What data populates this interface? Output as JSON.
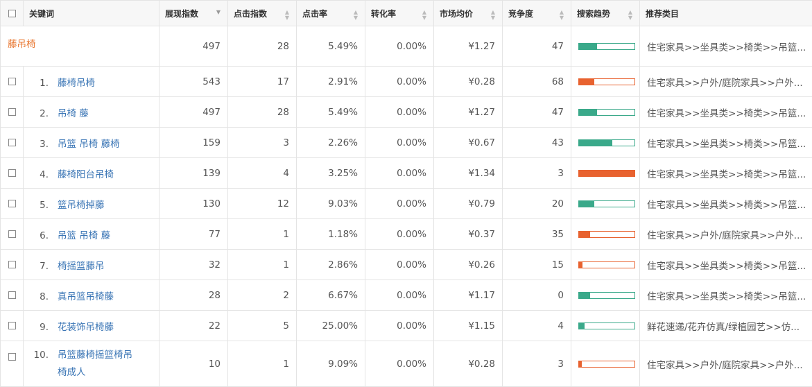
{
  "colors": {
    "green": "#3aa98a",
    "orange": "#e8622f",
    "link": "#3a75b5",
    "head_keyword": "#e8762f"
  },
  "header": {
    "keyword": "关键词",
    "impressions": "展现指数",
    "clicks": "点击指数",
    "ctr": "点击率",
    "cvr": "转化率",
    "price": "市场均价",
    "competition": "竞争度",
    "trend": "搜索趋势",
    "category": "推荐类目"
  },
  "head_row": {
    "keyword": "藤吊椅",
    "impressions": "497",
    "clicks": "28",
    "ctr": "5.49%",
    "cvr": "0.00%",
    "price": "¥1.27",
    "competition": "47",
    "trend": 0.33,
    "trend_color": "green",
    "category": "住宅家具>>坐具类>>椅类>>吊篮..."
  },
  "rows": [
    {
      "index": "1.",
      "keyword": "藤椅吊椅",
      "impressions": "543",
      "clicks": "17",
      "ctr": "2.91%",
      "cvr": "0.00%",
      "price": "¥0.28",
      "competition": "68",
      "trend": 0.27,
      "trend_color": "orange",
      "category": "住宅家具>>户外/庭院家具>>户外..."
    },
    {
      "index": "2.",
      "keyword": "吊椅 藤",
      "impressions": "497",
      "clicks": "28",
      "ctr": "5.49%",
      "cvr": "0.00%",
      "price": "¥1.27",
      "competition": "47",
      "trend": 0.33,
      "trend_color": "green",
      "category": "住宅家具>>坐具类>>椅类>>吊篮..."
    },
    {
      "index": "3.",
      "keyword": "吊篮 吊椅 藤椅",
      "impressions": "159",
      "clicks": "3",
      "ctr": "2.26%",
      "cvr": "0.00%",
      "price": "¥0.67",
      "competition": "43",
      "trend": 0.6,
      "trend_color": "green",
      "category": "住宅家具>>坐具类>>椅类>>吊篮..."
    },
    {
      "index": "4.",
      "keyword": "藤椅阳台吊椅",
      "impressions": "139",
      "clicks": "4",
      "ctr": "3.25%",
      "cvr": "0.00%",
      "price": "¥1.34",
      "competition": "3",
      "trend": 1.0,
      "trend_color": "orange",
      "category": "住宅家具>>坐具类>>椅类>>吊篮..."
    },
    {
      "index": "5.",
      "keyword": "篮吊椅掉藤",
      "impressions": "130",
      "clicks": "12",
      "ctr": "9.03%",
      "cvr": "0.00%",
      "price": "¥0.79",
      "competition": "20",
      "trend": 0.27,
      "trend_color": "green",
      "category": "住宅家具>>坐具类>>椅类>>吊篮..."
    },
    {
      "index": "6.",
      "keyword": "吊篮 吊椅 藤",
      "impressions": "77",
      "clicks": "1",
      "ctr": "1.18%",
      "cvr": "0.00%",
      "price": "¥0.37",
      "competition": "35",
      "trend": 0.2,
      "trend_color": "orange",
      "category": "住宅家具>>户外/庭院家具>>户外..."
    },
    {
      "index": "7.",
      "keyword": "椅摇篮藤吊",
      "impressions": "32",
      "clicks": "1",
      "ctr": "2.86%",
      "cvr": "0.00%",
      "price": "¥0.26",
      "competition": "15",
      "trend": 0.06,
      "trend_color": "orange",
      "category": "住宅家具>>坐具类>>椅类>>吊篮..."
    },
    {
      "index": "8.",
      "keyword": "真吊篮吊椅藤",
      "impressions": "28",
      "clicks": "2",
      "ctr": "6.67%",
      "cvr": "0.00%",
      "price": "¥1.17",
      "competition": "0",
      "trend": 0.2,
      "trend_color": "green",
      "category": "住宅家具>>坐具类>>椅类>>吊篮..."
    },
    {
      "index": "9.",
      "keyword": "花装饰吊椅藤",
      "impressions": "22",
      "clicks": "5",
      "ctr": "25.00%",
      "cvr": "0.00%",
      "price": "¥1.15",
      "competition": "4",
      "trend": 0.1,
      "trend_color": "green",
      "category": "鲜花速递/花卉仿真/绿植园艺>>仿..."
    },
    {
      "index": "10.",
      "keyword": "吊篮藤椅摇篮椅吊椅成人",
      "impressions": "10",
      "clicks": "1",
      "ctr": "9.09%",
      "cvr": "0.00%",
      "price": "¥0.28",
      "competition": "3",
      "trend": 0.05,
      "trend_color": "orange",
      "category": "住宅家具>>户外/庭院家具>>户外..."
    }
  ]
}
